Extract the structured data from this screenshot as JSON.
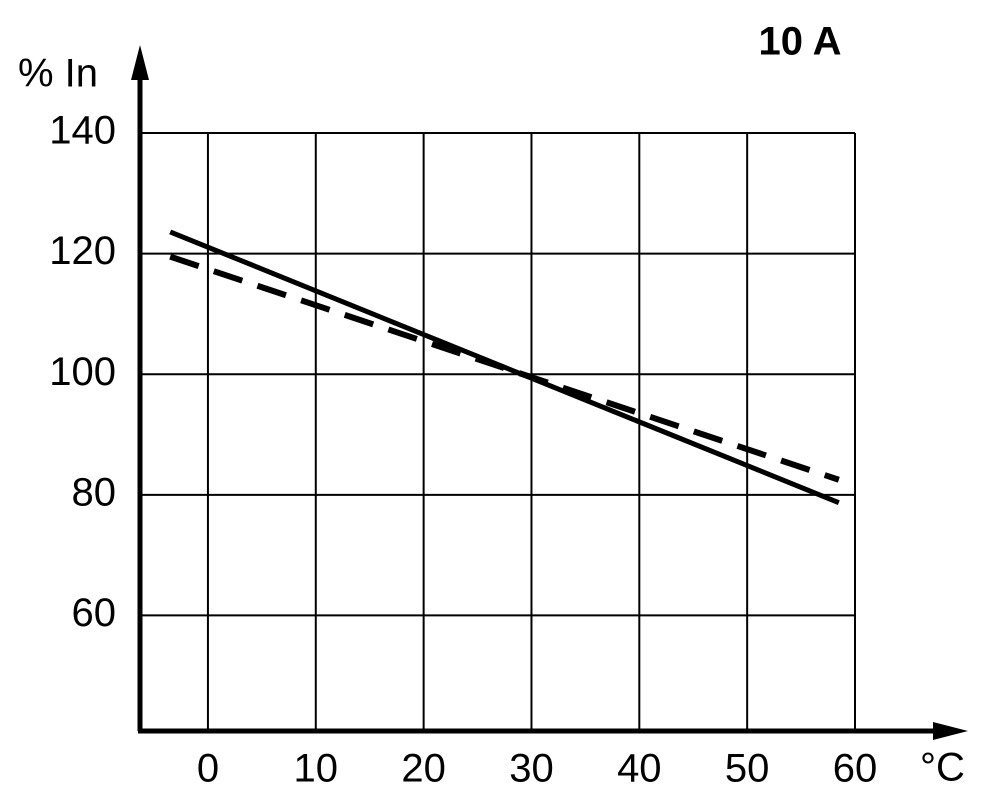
{
  "chart_data": {
    "type": "line",
    "title": "10 A",
    "y_label": "% In",
    "x_label": "°C",
    "x": [
      -3.5,
      58.5
    ],
    "series": [
      {
        "color": "#000000",
        "style": "solid",
        "values": [
          123.6,
          78.7
        ]
      },
      {
        "color": "#000000",
        "style": "dashed",
        "values": [
          119.5,
          82.5
        ]
      }
    ],
    "xlim": [
      -6.3,
      60
    ],
    "ylim": [
      41,
      140
    ],
    "xticks": [
      0,
      10,
      20,
      30,
      40,
      50,
      60
    ],
    "yticks": [
      60,
      80,
      100,
      120,
      140
    ],
    "grid": true
  }
}
